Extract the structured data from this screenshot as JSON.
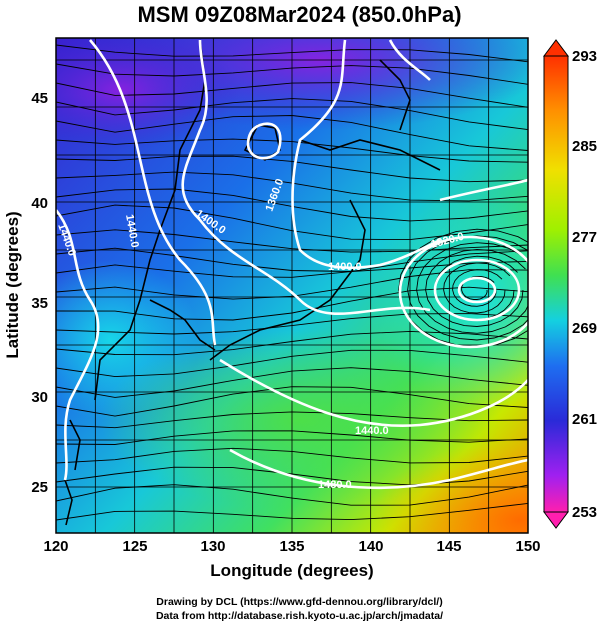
{
  "title": "MSM 09Z08Mar2024 (850.0hPa)",
  "x_axis": {
    "label": "Longitude (degrees)",
    "ticks": [
      "120",
      "125",
      "130",
      "135",
      "140",
      "145",
      "150"
    ]
  },
  "y_axis": {
    "label": "Latitude  (degrees)",
    "ticks": [
      "25",
      "30",
      "35",
      "40",
      "45"
    ]
  },
  "colorbar": {
    "ticks": [
      "293",
      "285",
      "277",
      "269",
      "261",
      "253"
    ],
    "palette": [
      "#ff1fae",
      "#a020f0",
      "#2a2ad8",
      "#1e6ef0",
      "#14d0e0",
      "#20e0a0",
      "#40e050",
      "#a0f000",
      "#f0e000",
      "#ff9000",
      "#ff3000"
    ]
  },
  "contour_labels": [
    {
      "text": "1440.0"
    },
    {
      "text": "1440.0"
    },
    {
      "text": "1400.0"
    },
    {
      "text": "1360.0"
    },
    {
      "text": "1400.0"
    },
    {
      "text": "1320.0"
    },
    {
      "text": "1440.0"
    },
    {
      "text": "1480.0"
    }
  ],
  "credits": {
    "line1": "Drawing by DCL (https://www.gfd-dennou.org/library/dcl/)",
    "line2": "Data from http://database.rish.kyoto-u.ac.jp/arch/jmadata/"
  }
}
